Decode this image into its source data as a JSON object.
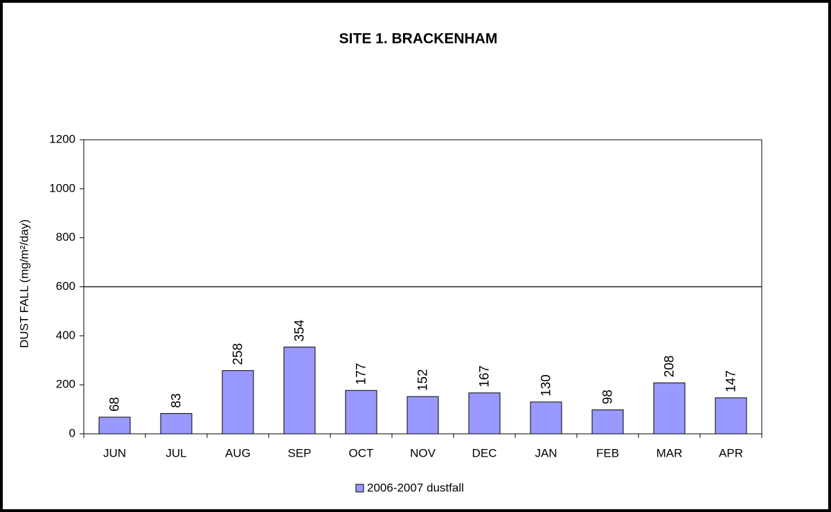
{
  "chart_data": {
    "type": "bar",
    "title": "SITE 1. BRACKENHAM",
    "y_label": "DUST FALL  (mg/m²/day)",
    "categories": [
      "JUN",
      "JUL",
      "AUG",
      "SEP",
      "OCT",
      "NOV",
      "DEC",
      "JAN",
      "FEB",
      "MAR",
      "APR"
    ],
    "series": [
      {
        "name": "2006-2007 dustfall",
        "color": "#9999ff",
        "values": [
          68,
          83,
          258,
          354,
          177,
          152,
          167,
          130,
          98,
          208,
          147
        ]
      }
    ],
    "ylim": [
      0,
      1200
    ],
    "yticks": [
      0,
      200,
      400,
      600,
      800,
      1000,
      1200
    ],
    "reference_line": 600,
    "grid": false,
    "legend": "bottom"
  }
}
